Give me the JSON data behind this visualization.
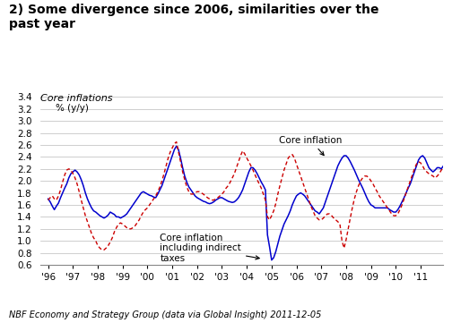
{
  "title": "2) Some divergence since 2006, similarities over the\npast year",
  "subtitle": "Core inflations",
  "ylabel": "% (y/y)",
  "xlabel_note": "NBF Economy and Strategy Group (data via Global Insight) 2011-12-05",
  "ylim": [
    0.6,
    3.4
  ],
  "yticks": [
    0.6,
    0.8,
    1.0,
    1.2,
    1.4,
    1.6,
    1.8,
    2.0,
    2.2,
    2.4,
    2.6,
    2.8,
    3.0,
    3.2,
    3.4
  ],
  "blue_color": "#0000CD",
  "red_color": "#CC0000",
  "blue_x": [
    0,
    0.083,
    0.167,
    0.25,
    0.333,
    0.417,
    0.5,
    0.583,
    0.667,
    0.75,
    0.833,
    0.917,
    1.0,
    1.083,
    1.167,
    1.25,
    1.333,
    1.417,
    1.5,
    1.583,
    1.667,
    1.75,
    1.833,
    1.917,
    2.0,
    2.083,
    2.167,
    2.25,
    2.333,
    2.417,
    2.5,
    2.583,
    2.667,
    2.75,
    2.833,
    2.917,
    3.0,
    3.083,
    3.167,
    3.25,
    3.333,
    3.417,
    3.5,
    3.583,
    3.667,
    3.75,
    3.833,
    3.917,
    4.0,
    4.083,
    4.167,
    4.25,
    4.333,
    4.417,
    4.5,
    4.583,
    4.667,
    4.75,
    4.833,
    4.917,
    5.0,
    5.083,
    5.167,
    5.25,
    5.333,
    5.417,
    5.5,
    5.583,
    5.667,
    5.75,
    5.833,
    5.917,
    6.0,
    6.083,
    6.167,
    6.25,
    6.333,
    6.417,
    6.5,
    6.583,
    6.667,
    6.75,
    6.833,
    6.917,
    7.0,
    7.083,
    7.167,
    7.25,
    7.333,
    7.417,
    7.5,
    7.583,
    7.667,
    7.75,
    7.833,
    7.917,
    8.0,
    8.083,
    8.167,
    8.25,
    8.333,
    8.417,
    8.5,
    8.583,
    8.667,
    8.75,
    8.833,
    8.917,
    9.0,
    9.083,
    9.167,
    9.25,
    9.333,
    9.417,
    9.5,
    9.583,
    9.667,
    9.75,
    9.833,
    9.917,
    10.0,
    10.083,
    10.167,
    10.25,
    10.333,
    10.417,
    10.5,
    10.583,
    10.667,
    10.75,
    10.833,
    10.917,
    11.0,
    11.083,
    11.167,
    11.25,
    11.333,
    11.417,
    11.5,
    11.583,
    11.667,
    11.75,
    11.833,
    11.917,
    12.0,
    12.083,
    12.167,
    12.25,
    12.333,
    12.417,
    12.5,
    12.583,
    12.667,
    12.75,
    12.833,
    12.917,
    13.0,
    13.083,
    13.167,
    13.25,
    13.333,
    13.417,
    13.5,
    13.583,
    13.667,
    13.75,
    13.833,
    13.917,
    14.0,
    14.083,
    14.167,
    14.25,
    14.333,
    14.417,
    14.5,
    14.583,
    14.667,
    14.75,
    14.833,
    14.917,
    15.0,
    15.083,
    15.167,
    15.25,
    15.333,
    15.417,
    15.5,
    15.583,
    15.667,
    15.75,
    15.833,
    15.917
  ],
  "blue_y": [
    1.7,
    1.65,
    1.58,
    1.52,
    1.58,
    1.63,
    1.72,
    1.8,
    1.88,
    1.95,
    2.05,
    2.12,
    2.15,
    2.18,
    2.15,
    2.1,
    2.02,
    1.92,
    1.8,
    1.7,
    1.62,
    1.55,
    1.5,
    1.48,
    1.45,
    1.42,
    1.4,
    1.38,
    1.4,
    1.43,
    1.48,
    1.46,
    1.44,
    1.4,
    1.4,
    1.38,
    1.4,
    1.42,
    1.45,
    1.5,
    1.55,
    1.6,
    1.65,
    1.7,
    1.75,
    1.8,
    1.82,
    1.8,
    1.78,
    1.76,
    1.75,
    1.73,
    1.72,
    1.78,
    1.85,
    1.92,
    2.02,
    2.12,
    2.22,
    2.32,
    2.42,
    2.52,
    2.58,
    2.52,
    2.38,
    2.22,
    2.08,
    1.98,
    1.9,
    1.85,
    1.8,
    1.75,
    1.72,
    1.7,
    1.68,
    1.66,
    1.65,
    1.63,
    1.62,
    1.63,
    1.65,
    1.68,
    1.7,
    1.72,
    1.72,
    1.7,
    1.68,
    1.66,
    1.65,
    1.64,
    1.65,
    1.68,
    1.72,
    1.78,
    1.85,
    1.95,
    2.05,
    2.15,
    2.22,
    2.22,
    2.18,
    2.12,
    2.05,
    1.98,
    1.92,
    1.85,
    1.1,
    0.9,
    0.68,
    0.72,
    0.82,
    0.95,
    1.08,
    1.18,
    1.28,
    1.35,
    1.42,
    1.5,
    1.6,
    1.68,
    1.75,
    1.78,
    1.8,
    1.78,
    1.75,
    1.7,
    1.65,
    1.6,
    1.55,
    1.5,
    1.48,
    1.45,
    1.5,
    1.55,
    1.65,
    1.75,
    1.85,
    1.95,
    2.05,
    2.15,
    2.25,
    2.32,
    2.38,
    2.42,
    2.42,
    2.38,
    2.32,
    2.25,
    2.18,
    2.1,
    2.02,
    1.95,
    1.88,
    1.8,
    1.72,
    1.65,
    1.6,
    1.58,
    1.55,
    1.55,
    1.55,
    1.55,
    1.55,
    1.55,
    1.55,
    1.52,
    1.5,
    1.48,
    1.48,
    1.52,
    1.58,
    1.65,
    1.72,
    1.8,
    1.88,
    1.95,
    2.05,
    2.15,
    2.25,
    2.35,
    2.4,
    2.42,
    2.38,
    2.3,
    2.22,
    2.18,
    2.15,
    2.18,
    2.22,
    2.22,
    2.2,
    2.25
  ],
  "red_x": [
    0,
    0.083,
    0.167,
    0.25,
    0.333,
    0.417,
    0.5,
    0.583,
    0.667,
    0.75,
    0.833,
    0.917,
    1.0,
    1.083,
    1.167,
    1.25,
    1.333,
    1.417,
    1.5,
    1.583,
    1.667,
    1.75,
    1.833,
    1.917,
    2.0,
    2.083,
    2.167,
    2.25,
    2.333,
    2.417,
    2.5,
    2.583,
    2.667,
    2.75,
    2.833,
    2.917,
    3.0,
    3.083,
    3.167,
    3.25,
    3.333,
    3.417,
    3.5,
    3.583,
    3.667,
    3.75,
    3.833,
    3.917,
    4.0,
    4.083,
    4.167,
    4.25,
    4.333,
    4.417,
    4.5,
    4.583,
    4.667,
    4.75,
    4.833,
    4.917,
    5.0,
    5.083,
    5.167,
    5.25,
    5.333,
    5.417,
    5.5,
    5.583,
    5.667,
    5.75,
    5.833,
    5.917,
    6.0,
    6.083,
    6.167,
    6.25,
    6.333,
    6.417,
    6.5,
    6.583,
    6.667,
    6.75,
    6.833,
    6.917,
    7.0,
    7.083,
    7.167,
    7.25,
    7.333,
    7.417,
    7.5,
    7.583,
    7.667,
    7.75,
    7.833,
    7.917,
    8.0,
    8.083,
    8.167,
    8.25,
    8.333,
    8.417,
    8.5,
    8.583,
    8.667,
    8.75,
    8.833,
    8.917,
    9.0,
    9.083,
    9.167,
    9.25,
    9.333,
    9.417,
    9.5,
    9.583,
    9.667,
    9.75,
    9.833,
    9.917,
    10.0,
    10.083,
    10.167,
    10.25,
    10.333,
    10.417,
    10.5,
    10.583,
    10.667,
    10.75,
    10.833,
    10.917,
    11.0,
    11.083,
    11.167,
    11.25,
    11.333,
    11.417,
    11.5,
    11.583,
    11.667,
    11.75,
    11.833,
    11.917,
    12.0,
    12.083,
    12.167,
    12.25,
    12.333,
    12.417,
    12.5,
    12.583,
    12.667,
    12.75,
    12.833,
    12.917,
    13.0,
    13.083,
    13.167,
    13.25,
    13.333,
    13.417,
    13.5,
    13.583,
    13.667,
    13.75,
    13.833,
    13.917,
    14.0,
    14.083,
    14.167,
    14.25,
    14.333,
    14.417,
    14.5,
    14.583,
    14.667,
    14.75,
    14.833,
    14.917,
    15.0,
    15.083,
    15.167,
    15.25,
    15.333,
    15.417,
    15.5,
    15.583,
    15.667,
    15.75,
    15.833,
    15.917
  ],
  "red_y": [
    1.68,
    1.72,
    1.75,
    1.7,
    1.68,
    1.75,
    1.85,
    1.98,
    2.1,
    2.18,
    2.2,
    2.18,
    2.12,
    2.05,
    1.95,
    1.82,
    1.68,
    1.55,
    1.42,
    1.32,
    1.22,
    1.12,
    1.05,
    1.0,
    0.92,
    0.88,
    0.85,
    0.85,
    0.88,
    0.92,
    0.98,
    1.05,
    1.15,
    1.22,
    1.28,
    1.3,
    1.28,
    1.25,
    1.22,
    1.2,
    1.2,
    1.22,
    1.25,
    1.3,
    1.35,
    1.42,
    1.48,
    1.52,
    1.55,
    1.6,
    1.65,
    1.7,
    1.75,
    1.82,
    1.9,
    2.0,
    2.12,
    2.25,
    2.38,
    2.48,
    2.55,
    2.62,
    2.65,
    2.48,
    2.32,
    2.15,
    2.02,
    1.9,
    1.82,
    1.78,
    1.78,
    1.8,
    1.82,
    1.82,
    1.8,
    1.78,
    1.75,
    1.72,
    1.7,
    1.68,
    1.68,
    1.7,
    1.72,
    1.75,
    1.78,
    1.82,
    1.88,
    1.92,
    1.98,
    2.05,
    2.12,
    2.22,
    2.32,
    2.42,
    2.5,
    2.45,
    2.38,
    2.32,
    2.25,
    2.18,
    2.1,
    2.02,
    1.95,
    1.88,
    1.78,
    1.68,
    1.4,
    1.35,
    1.42,
    1.5,
    1.62,
    1.78,
    1.92,
    2.05,
    2.18,
    2.28,
    2.38,
    2.42,
    2.44,
    2.38,
    2.28,
    2.18,
    2.08,
    1.98,
    1.88,
    1.78,
    1.68,
    1.58,
    1.5,
    1.42,
    1.38,
    1.35,
    1.35,
    1.38,
    1.42,
    1.45,
    1.45,
    1.42,
    1.38,
    1.35,
    1.32,
    1.28,
    1.0,
    0.88,
    1.02,
    1.2,
    1.38,
    1.55,
    1.7,
    1.82,
    1.92,
    2.0,
    2.05,
    2.08,
    2.08,
    2.05,
    2.0,
    1.95,
    1.88,
    1.82,
    1.75,
    1.7,
    1.65,
    1.6,
    1.55,
    1.5,
    1.45,
    1.42,
    1.42,
    1.45,
    1.52,
    1.6,
    1.7,
    1.8,
    1.9,
    2.0,
    2.1,
    2.2,
    2.28,
    2.32,
    2.3,
    2.25,
    2.18,
    2.15,
    2.12,
    2.1,
    2.08,
    2.05,
    2.08,
    2.12,
    2.18,
    2.22
  ]
}
